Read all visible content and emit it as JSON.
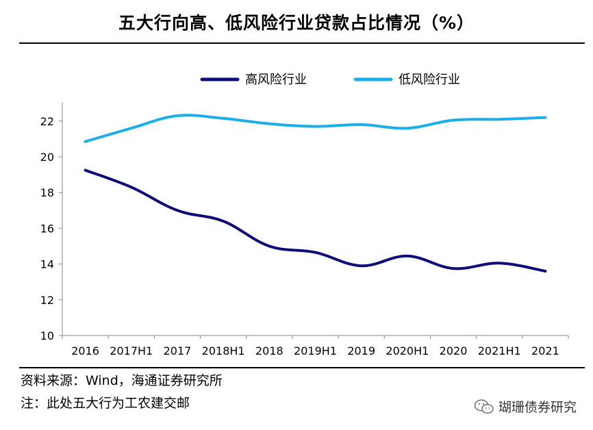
{
  "title": "五大行向高、低风险行业贷款占比情况（%）",
  "source": "资料来源：Wind，海通证券研究所",
  "note": "注：此处五大行为工农建交邮",
  "watermark": "瑚珊债券研究",
  "watermark_icon": "wechat-icon",
  "colors": {
    "high_risk": "#0D0C7A",
    "low_risk": "#1AAEEA",
    "axis": "#888888"
  },
  "chart_data": {
    "type": "line",
    "title": "五大行向高、低风险行业贷款占比情况（%）",
    "xlabel": "",
    "ylabel": "",
    "categories": [
      "2016",
      "2017H1",
      "2017",
      "2018H1",
      "2018",
      "2019H1",
      "2019",
      "2020H1",
      "2020",
      "2021H1",
      "2021"
    ],
    "ylim": [
      10,
      23
    ],
    "yticks": [
      10,
      12,
      14,
      16,
      18,
      20,
      22
    ],
    "grid": false,
    "legend_position": "top",
    "series": [
      {
        "name": "高风险行业",
        "color": "#0D0C7A",
        "values": [
          19.25,
          18.3,
          17.0,
          16.4,
          15.0,
          14.65,
          13.9,
          14.45,
          13.75,
          14.05,
          13.6
        ]
      },
      {
        "name": "低风险行业",
        "color": "#1AAEEA",
        "values": [
          20.85,
          21.6,
          22.3,
          22.15,
          21.85,
          21.7,
          21.8,
          21.6,
          22.05,
          22.1,
          22.2
        ]
      }
    ]
  }
}
